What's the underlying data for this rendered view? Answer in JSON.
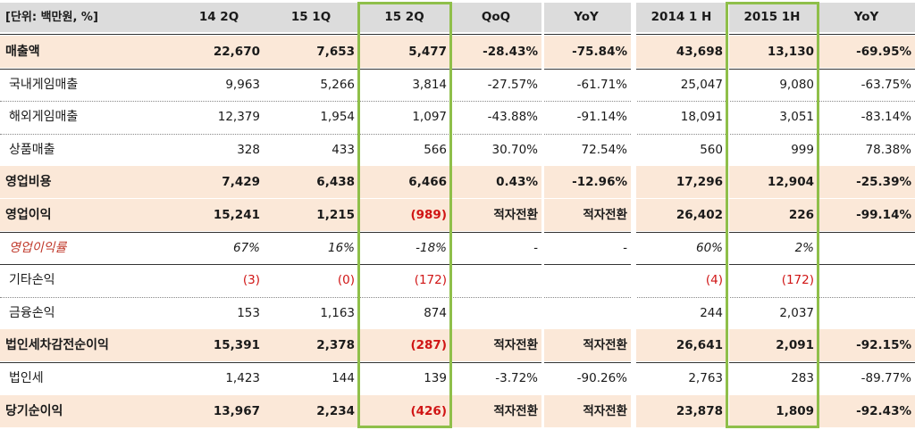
{
  "header": {
    "unit": "[단위: 백만원, %]",
    "cols": [
      "14 2Q",
      "15 1Q",
      "15 2Q",
      "QoQ",
      "YoY",
      "2014 1 H",
      "2015 1H",
      "YoY"
    ]
  },
  "rows": [
    {
      "label": "매출액",
      "hl": true,
      "v": [
        "22,670",
        "7,653",
        "5,477",
        "-28.43%",
        "-75.84%",
        "43,698",
        "13,130",
        "-69.95%"
      ]
    },
    {
      "label": "국내게임매출",
      "v": [
        "9,963",
        "5,266",
        "3,814",
        "-27.57%",
        "-61.71%",
        "25,047",
        "9,080",
        "-63.75%"
      ]
    },
    {
      "label": "해외게임매출",
      "v": [
        "12,379",
        "1,954",
        "1,097",
        "-43.88%",
        "-91.14%",
        "18,091",
        "3,051",
        "-83.14%"
      ]
    },
    {
      "label": "상품매출",
      "v": [
        "328",
        "433",
        "566",
        "30.70%",
        "72.54%",
        "560",
        "999",
        "78.38%"
      ]
    },
    {
      "label": "영업비용",
      "hl": true,
      "v": [
        "7,429",
        "6,438",
        "6,466",
        "0.43%",
        "-12.96%",
        "17,296",
        "12,904",
        "-25.39%"
      ]
    },
    {
      "label": "영업이익",
      "hl": true,
      "v": [
        "15,241",
        "1,215",
        "(989)",
        "적자전환",
        "적자전환",
        "26,402",
        "226",
        "-99.14%"
      ]
    },
    {
      "label": "영업이익률",
      "italic": true,
      "v": [
        "67%",
        "16%",
        "-18%",
        "-",
        "-",
        "60%",
        "2%",
        ""
      ]
    },
    {
      "label": "기타손익",
      "v": [
        "(3)",
        "(0)",
        "(172)",
        "",
        "",
        "(4)",
        "(172)",
        ""
      ]
    },
    {
      "label": "금융손익",
      "v": [
        "153",
        "1,163",
        "874",
        "",
        "",
        "244",
        "2,037",
        ""
      ]
    },
    {
      "label": "법인세차감전순이익",
      "hl": true,
      "v": [
        "15,391",
        "2,378",
        "(287)",
        "적자전환",
        "적자전환",
        "26,641",
        "2,091",
        "-92.15%"
      ]
    },
    {
      "label": "법인세",
      "v": [
        "1,423",
        "144",
        "139",
        "-3.72%",
        "-90.26%",
        "2,763",
        "283",
        "-89.77%"
      ]
    },
    {
      "label": "당기순이익",
      "hl": true,
      "v": [
        "13,967",
        "2,234",
        "(426)",
        "적자전환",
        "적자전환",
        "23,878",
        "1,809",
        "-92.43%"
      ]
    }
  ],
  "colors": {
    "highlight": "#fbe8d8",
    "header_bg": "#dcdcdc",
    "green_box": "#8fbf4a",
    "negative": "#d01515",
    "italic_label": "#c0392b"
  }
}
